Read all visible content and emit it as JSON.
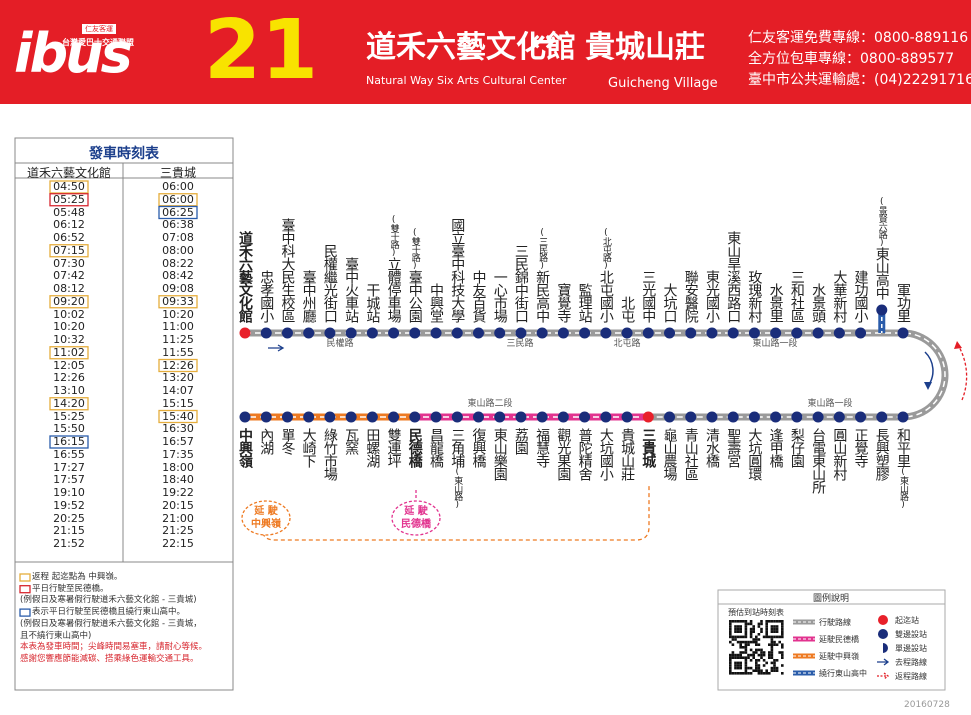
{
  "header": {
    "logo": "ibus",
    "logo_company": "仁友客運",
    "logo_alliance": "台灣愛巴士交通聯盟",
    "route_number": "21",
    "origin": "道禾六藝文化館",
    "origin_en": "Natural Way Six Arts Cultural Center",
    "arrow": "↔",
    "destination": "貴城山莊",
    "destination_en": "Guicheng Village",
    "contacts": [
      "仁友客運免費專線：0800-889116",
      "全方位包車專線：0800-889577",
      "臺中市公共運輸處：(04)22291716"
    ]
  },
  "timetable": {
    "title": "發車時刻表",
    "columns": [
      {
        "header": "道禾六藝文化館",
        "times": [
          {
            "time": "04:50",
            "box": "#e5ad3c"
          },
          {
            "time": "05:25",
            "box": "#d7272f"
          },
          "05:48",
          "06:12",
          "06:52",
          {
            "time": "07:15",
            "box": "#e5ad3c"
          },
          "07:30",
          "07:42",
          "08:12",
          {
            "time": "09:20",
            "box": "#e5ad3c"
          },
          "10:02",
          "10:20",
          "10:32",
          {
            "time": "11:02",
            "box": "#e5ad3c"
          },
          "12:05",
          "12:26",
          "13:10",
          {
            "time": "14:20",
            "box": "#e5ad3c"
          },
          "15:25",
          "15:50",
          {
            "time": "16:15",
            "box": "#2a5caa"
          },
          "16:55",
          "17:27",
          "17:57",
          "19:10",
          "19:52",
          "20:25",
          "21:15",
          "21:52"
        ]
      },
      {
        "header": "三貴城",
        "times": [
          "06:00",
          {
            "time": "06:00",
            "box": "#e5ad3c"
          },
          {
            "time": "06:25",
            "box": "#2a5caa"
          },
          "06:38",
          "07:08",
          "08:00",
          "08:22",
          "08:42",
          "09:08",
          {
            "time": "09:33",
            "box": "#e5ad3c"
          },
          "10:20",
          "11:00",
          "11:25",
          "11:55",
          {
            "time": "12:26",
            "box": "#e5ad3c"
          },
          "13:20",
          "14:07",
          "15:15",
          {
            "time": "15:40",
            "box": "#e5ad3c"
          },
          "16:30",
          "16:57",
          "17:35",
          "18:00",
          "18:40",
          "19:22",
          "20:15",
          "21:00",
          "21:25",
          "22:15"
        ]
      }
    ],
    "notes": [
      {
        "text": "返程 起迄點為 中興嶺。",
        "box": "#e5ad3c"
      },
      {
        "text": "平日行駛至民德橋。",
        "box": "#d7272f"
      },
      {
        "text": "(例假日及寒暑假行駛道禾六藝文化館 - 三貴城)"
      },
      {
        "text": "表示平日行駛至民德橋且繞行東山高中。",
        "box": "#2a5caa"
      },
      {
        "text": "(例假日及寒暑假行駛道禾六藝文化館 - 三貴城，"
      },
      {
        "text": "且不繞行東山高中)"
      },
      {
        "text": "本表為發車時間；尖峰時間易塞車，請耐心等候。",
        "color": "#d7272f"
      },
      {
        "text": "感謝您響應節能減碳、搭乘綠色運輸交通工具。",
        "color": "#d7272f"
      }
    ]
  },
  "route": {
    "outbound": [
      {
        "name": "道禾六藝文化館",
        "bold": true,
        "dot": "#e8202a"
      },
      {
        "name": "忠孝國小"
      },
      {
        "name": "臺中科大民生校區"
      },
      {
        "name": "臺中州廳"
      },
      {
        "name": "民權繼光街口"
      },
      {
        "name": "臺中火車站"
      },
      {
        "name": "干城站"
      },
      {
        "name": "立體停車場",
        "note": "(雙十路)"
      },
      {
        "name": "臺中公園",
        "note": "(雙十路)"
      },
      {
        "name": "中興堂"
      },
      {
        "name": "國立臺中科技大學"
      },
      {
        "name": "中友百貨"
      },
      {
        "name": "一心市場"
      },
      {
        "name": "三民錦中街口"
      },
      {
        "name": "新民高中",
        "note": "(三民路)"
      },
      {
        "name": "寶覺寺"
      },
      {
        "name": "監理站"
      },
      {
        "name": "北屯國小",
        "note": "(北屯路)"
      },
      {
        "name": "北屯"
      },
      {
        "name": "三光國中"
      },
      {
        "name": "大坑口"
      },
      {
        "name": "聯安醫院"
      },
      {
        "name": "東光國小"
      },
      {
        "name": "東山旱溪西路口"
      },
      {
        "name": "玫瑰新村"
      },
      {
        "name": "水景里"
      },
      {
        "name": "三和社區"
      },
      {
        "name": "水景頭"
      },
      {
        "name": "大華新村"
      },
      {
        "name": "建功國小"
      },
      {
        "name": "東山高中",
        "note": "(景賢六路)",
        "detour": true
      },
      {
        "name": "軍功里"
      }
    ],
    "return": [
      {
        "name": "和平里",
        "note": "(東山路)"
      },
      {
        "name": "長興塑膠"
      },
      {
        "name": "正覺寺"
      },
      {
        "name": "圓山新村"
      },
      {
        "name": "台電東山所"
      },
      {
        "name": "梨仔園"
      },
      {
        "name": "逢甲橋"
      },
      {
        "name": "大坑圓環"
      },
      {
        "name": "聖壽宮"
      },
      {
        "name": "清水橋"
      },
      {
        "name": "青山社區"
      },
      {
        "name": "龜山農場"
      },
      {
        "name": "三貴城",
        "bold": true,
        "dot": "#e8202a"
      },
      {
        "name": "貴城山莊"
      },
      {
        "name": "大坑國小"
      },
      {
        "name": "普陀精舍"
      },
      {
        "name": "觀光果園"
      },
      {
        "name": "福慧寺"
      },
      {
        "name": "荔園"
      },
      {
        "name": "東山樂園"
      },
      {
        "name": "復興橋"
      },
      {
        "name": "三角埔",
        "note": "(東山路)"
      },
      {
        "name": "昌龍橋"
      },
      {
        "name": "民德橋",
        "bold": true
      },
      {
        "name": "雙連坪"
      },
      {
        "name": "田螺湖"
      },
      {
        "name": "瓦窯"
      },
      {
        "name": "綠竹市場"
      },
      {
        "name": "大崎下"
      },
      {
        "name": "單冬"
      },
      {
        "name": "內湖"
      },
      {
        "name": "中興嶺",
        "bold": true
      }
    ],
    "roads_top": [
      "民權路",
      "三民路",
      "北屯路",
      "東山路一段"
    ],
    "roads_bottom": [
      "東山路二段",
      "東山路一段"
    ],
    "extension_zhongxingling": "延 駛",
    "extension_zhongxingling_stop": "中興嶺",
    "extension_minde": "延 駛",
    "extension_minde_stop": "民德橋"
  },
  "legend": {
    "title": "圖例說明",
    "qr_caption": "預估到站時刻表",
    "lines": [
      {
        "label": "行駛路線",
        "color": "#9a9a9a"
      },
      {
        "label": "延駛民德橋",
        "color": "#e2338f"
      },
      {
        "label": "延駛中興嶺",
        "color": "#ee7a22"
      },
      {
        "label": "繞行東山高中",
        "color": "#2a5caa"
      }
    ],
    "symbols": [
      "起迄站",
      "雙邊設站",
      "單邊設站",
      "去程路線",
      "返程路線"
    ]
  },
  "footer": "20160728"
}
